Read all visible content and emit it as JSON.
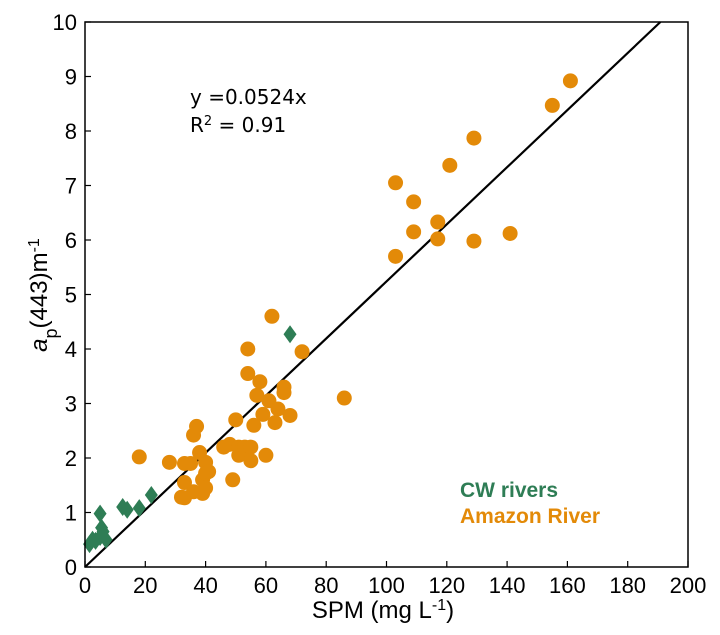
{
  "chart_data": {
    "type": "scatter",
    "xlim": [
      0,
      200
    ],
    "ylim": [
      0,
      10
    ],
    "x_ticks": [
      "0",
      "20",
      "40",
      "60",
      "80",
      "100",
      "120",
      "140",
      "160",
      "180",
      "200"
    ],
    "y_ticks": [
      "0",
      "1",
      "2",
      "3",
      "4",
      "5",
      "6",
      "7",
      "8",
      "9",
      "10"
    ],
    "xlabel": {
      "main": "SPM (mg L",
      "sup": "-1",
      "end": ")"
    },
    "ylabel": {
      "italic": "a",
      "sub": "p",
      "main": "(443)m",
      "sup": "-1"
    },
    "grid": false,
    "annotation": {
      "equation": "y =0.0524x",
      "r2_prefix": "R",
      "r2_sup": "2",
      "r2_value": " = 0.91"
    },
    "regression": {
      "slope": 0.0524,
      "intercept": 0,
      "color": "#000000"
    },
    "legend": {
      "placement": "bottom-right"
    },
    "series": [
      {
        "name": "CW rivers",
        "marker": "diamond",
        "color": "#2e7d55",
        "points": [
          [
            1.5,
            0.42
          ],
          [
            2.5,
            0.5
          ],
          [
            3.5,
            0.48
          ],
          [
            5,
            0.55
          ],
          [
            5.5,
            0.72
          ],
          [
            5,
            0.98
          ],
          [
            6,
            0.65
          ],
          [
            7,
            0.5
          ],
          [
            12.5,
            1.1
          ],
          [
            14,
            1.05
          ],
          [
            18,
            1.08
          ],
          [
            22,
            1.32
          ],
          [
            68,
            4.27
          ]
        ]
      },
      {
        "name": "Amazon River",
        "marker": "circle",
        "color": "#e38a08",
        "points": [
          [
            18,
            2.02
          ],
          [
            28,
            1.92
          ],
          [
            32,
            1.28
          ],
          [
            33,
            1.27
          ],
          [
            33,
            1.55
          ],
          [
            33,
            1.9
          ],
          [
            35,
            1.9
          ],
          [
            36,
            1.38
          ],
          [
            36,
            2.42
          ],
          [
            37,
            2.58
          ],
          [
            38,
            2.1
          ],
          [
            39,
            1.35
          ],
          [
            39,
            1.6
          ],
          [
            40,
            1.72
          ],
          [
            40,
            1.45
          ],
          [
            40,
            1.92
          ],
          [
            41,
            1.75
          ],
          [
            46,
            2.2
          ],
          [
            48,
            2.25
          ],
          [
            49,
            1.6
          ],
          [
            50,
            2.7
          ],
          [
            51,
            2.05
          ],
          [
            51,
            2.2
          ],
          [
            52,
            2.15
          ],
          [
            53,
            2.2
          ],
          [
            54,
            3.55
          ],
          [
            54,
            4.0
          ],
          [
            55,
            2.2
          ],
          [
            55,
            1.95
          ],
          [
            56,
            2.6
          ],
          [
            57,
            3.15
          ],
          [
            58,
            3.4
          ],
          [
            59,
            2.8
          ],
          [
            60,
            2.05
          ],
          [
            61,
            3.05
          ],
          [
            62,
            4.6
          ],
          [
            63,
            2.65
          ],
          [
            64,
            2.9
          ],
          [
            66,
            3.2
          ],
          [
            66,
            3.3
          ],
          [
            68,
            2.78
          ],
          [
            72,
            3.95
          ],
          [
            86,
            3.1
          ],
          [
            103,
            7.05
          ],
          [
            103,
            5.7
          ],
          [
            109,
            6.7
          ],
          [
            109,
            6.15
          ],
          [
            117,
            6.33
          ],
          [
            117,
            6.02
          ],
          [
            121,
            7.37
          ],
          [
            129,
            7.87
          ],
          [
            129,
            5.98
          ],
          [
            141,
            6.12
          ],
          [
            155,
            8.47
          ],
          [
            161,
            8.92
          ]
        ]
      }
    ]
  }
}
